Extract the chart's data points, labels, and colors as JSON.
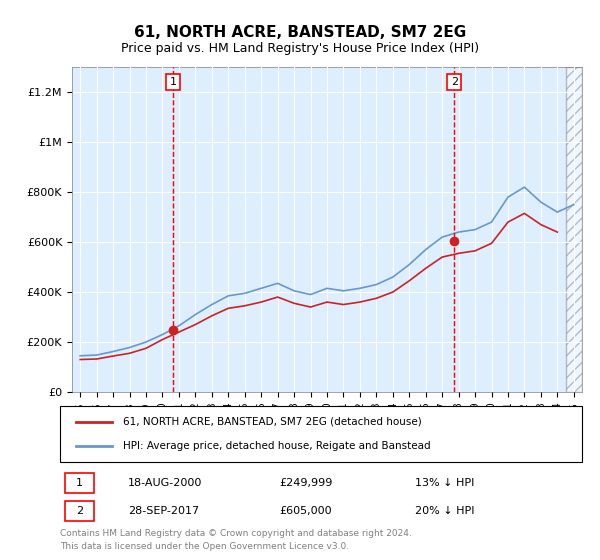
{
  "title": "61, NORTH ACRE, BANSTEAD, SM7 2EG",
  "subtitle": "Price paid vs. HM Land Registry's House Price Index (HPI)",
  "ylabel_ticks": [
    0,
    200000,
    400000,
    600000,
    800000,
    1000000,
    1200000
  ],
  "ylabel_labels": [
    "£0",
    "£200K",
    "£400K",
    "£600K",
    "£800K",
    "£1M",
    "£1.2M"
  ],
  "xlim": [
    1994.5,
    2025.5
  ],
  "ylim": [
    0,
    1300000
  ],
  "plot_bg": "#ddeeff",
  "transaction1": {
    "year": 2000.63,
    "price": 249999,
    "label": "1",
    "date": "18-AUG-2000",
    "pct": "13%"
  },
  "transaction2": {
    "year": 2017.74,
    "price": 605000,
    "label": "2",
    "date": "28-SEP-2017",
    "pct": "20%"
  },
  "legend_line1": "61, NORTH ACRE, BANSTEAD, SM7 2EG (detached house)",
  "legend_line2": "HPI: Average price, detached house, Reigate and Banstead",
  "footer1": "Contains HM Land Registry data © Crown copyright and database right 2024.",
  "footer2": "This data is licensed under the Open Government Licence v3.0.",
  "hpi_years": [
    1995,
    1996,
    1997,
    1998,
    1999,
    2000,
    2001,
    2002,
    2003,
    2004,
    2005,
    2006,
    2007,
    2008,
    2009,
    2010,
    2011,
    2012,
    2013,
    2014,
    2015,
    2016,
    2017,
    2018,
    2019,
    2020,
    2021,
    2022,
    2023,
    2024,
    2025
  ],
  "hpi_values": [
    145000,
    148000,
    162000,
    178000,
    200000,
    230000,
    265000,
    310000,
    350000,
    385000,
    395000,
    415000,
    435000,
    405000,
    390000,
    415000,
    405000,
    415000,
    430000,
    460000,
    510000,
    570000,
    620000,
    640000,
    650000,
    680000,
    780000,
    820000,
    760000,
    720000,
    750000
  ],
  "price_years": [
    1995,
    1996,
    1997,
    1998,
    1999,
    2000,
    2001,
    2002,
    2003,
    2004,
    2005,
    2006,
    2007,
    2008,
    2009,
    2010,
    2011,
    2012,
    2013,
    2014,
    2015,
    2016,
    2017,
    2018,
    2019,
    2020,
    2021,
    2022,
    2023,
    2024
  ],
  "price_values": [
    130000,
    132000,
    144000,
    155000,
    175000,
    210000,
    240000,
    270000,
    305000,
    335000,
    345000,
    360000,
    380000,
    355000,
    340000,
    360000,
    350000,
    360000,
    375000,
    400000,
    445000,
    495000,
    540000,
    555000,
    565000,
    595000,
    680000,
    715000,
    670000,
    640000
  ]
}
